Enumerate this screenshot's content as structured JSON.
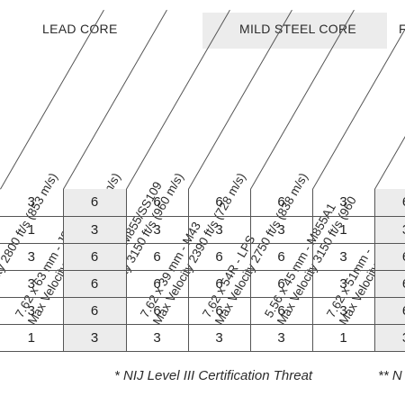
{
  "groups": [
    {
      "label": "LEAD CORE",
      "shaded": false
    },
    {
      "label": "MILD STEEL CORE",
      "shaded": true
    },
    {
      "label": "F",
      "shaded": false
    }
  ],
  "headers": [
    {
      "line1": "",
      "line2": "ft/s (728 m/s)"
    },
    {
      "line1": "mm - M80 *",
      "line2": "Max Velocity 2800 ft/s (853 m/s)"
    },
    {
      "line1": "7.62 x 63 mm - JSP",
      "line2": "Max Velocity 2780 ft/s (847 m/s)"
    },
    {
      "line1": "5.56 x 45 mm - M855/SS109",
      "line2": "Max Velocity 3150 ft/s (960 m/s)"
    },
    {
      "line1": "7.62 x 39 mm - M43",
      "line2": "Max Velocity 2390 ft/s (728 m/s)"
    },
    {
      "line1": "7.62 x 54R - LPS",
      "line2": "Max Velocity 2750 ft/s (838 m/s)"
    },
    {
      "line1": "5.56 x 45 mm - M855A1",
      "line2": "Max Velocity 3150 ft/s (960"
    },
    {
      "line1": "7.62 x 51mm -",
      "line2": "Max Velocity"
    }
  ],
  "rows": [
    [
      "3",
      "6",
      "6",
      "6",
      "6",
      "3",
      "6"
    ],
    [
      "1",
      "3",
      "3",
      "3",
      "3",
      "1",
      "3"
    ],
    [
      "3",
      "6",
      "6",
      "6",
      "6",
      "3",
      "6"
    ],
    [
      "3",
      "6",
      "6",
      "6",
      "6",
      "3",
      "6"
    ],
    [
      "3",
      "6",
      "6",
      "6",
      "6",
      "3",
      "6"
    ],
    [
      "1",
      "3",
      "3",
      "3",
      "3",
      "1",
      "3"
    ]
  ],
  "shaded_columns": [
    1,
    6
  ],
  "footnotes": [
    "* NIJ Level III Certification Threat",
    "** N"
  ]
}
